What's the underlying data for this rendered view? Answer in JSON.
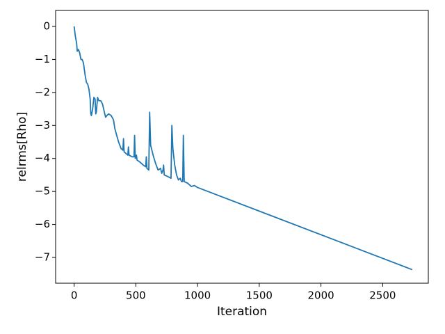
{
  "chart_data": {
    "type": "line",
    "x_label": "Iteration",
    "y_label": "relrms[Rho]",
    "x": [
      0,
      10,
      20,
      25,
      35,
      45,
      55,
      65,
      75,
      90,
      100,
      110,
      120,
      130,
      135,
      140,
      150,
      160,
      170,
      175,
      180,
      190,
      200,
      215,
      230,
      245,
      255,
      265,
      280,
      300,
      315,
      320,
      330,
      345,
      360,
      380,
      395,
      400,
      405,
      420,
      435,
      440,
      445,
      470,
      485,
      490,
      495,
      505,
      510,
      530,
      560,
      580,
      585,
      590,
      605,
      612,
      620,
      640,
      660,
      680,
      700,
      710,
      720,
      725,
      730,
      760,
      785,
      792,
      800,
      815,
      830,
      845,
      860,
      870,
      880,
      885,
      892,
      920,
      950,
      975,
      1000,
      2740
    ],
    "series": [
      {
        "name": "relrms[Rho]",
        "color": "#1f77b4",
        "values": [
          0,
          -0.3,
          -0.5,
          -0.75,
          -0.7,
          -0.8,
          -1.0,
          -1.0,
          -1.1,
          -1.5,
          -1.7,
          -1.75,
          -1.9,
          -2.2,
          -2.65,
          -2.7,
          -2.5,
          -2.15,
          -2.2,
          -2.65,
          -2.6,
          -2.15,
          -2.25,
          -2.25,
          -2.35,
          -2.6,
          -2.75,
          -2.7,
          -2.65,
          -2.7,
          -2.8,
          -2.85,
          -3.1,
          -3.3,
          -3.5,
          -3.7,
          -3.75,
          -3.4,
          -3.8,
          -3.85,
          -3.9,
          -3.65,
          -3.9,
          -3.95,
          -3.95,
          -3.3,
          -4.0,
          -3.9,
          -4.05,
          -4.1,
          -4.2,
          -4.25,
          -3.95,
          -4.3,
          -4.35,
          -2.6,
          -3.6,
          -3.9,
          -4.15,
          -4.35,
          -4.3,
          -4.45,
          -4.35,
          -4.2,
          -4.5,
          -4.55,
          -4.6,
          -3.0,
          -3.7,
          -4.2,
          -4.5,
          -4.65,
          -4.6,
          -4.7,
          -4.7,
          -3.3,
          -4.7,
          -4.75,
          -4.85,
          -4.82,
          -4.88,
          -7.37
        ]
      }
    ],
    "xlim": [
      -150,
      2870
    ],
    "ylim": [
      -7.78,
      0.485
    ],
    "xticks": [
      0,
      500,
      1000,
      1500,
      2000,
      2500
    ],
    "yticks": [
      0,
      {
        "value": -1,
        "label": "−1"
      },
      {
        "value": -2,
        "label": "−2"
      },
      {
        "value": -3,
        "label": "−3"
      },
      {
        "value": -4,
        "label": "−4"
      },
      {
        "value": -5,
        "label": "−5"
      },
      {
        "value": -6,
        "label": "−6"
      },
      {
        "value": -7,
        "label": "−7"
      }
    ],
    "grid": false
  }
}
